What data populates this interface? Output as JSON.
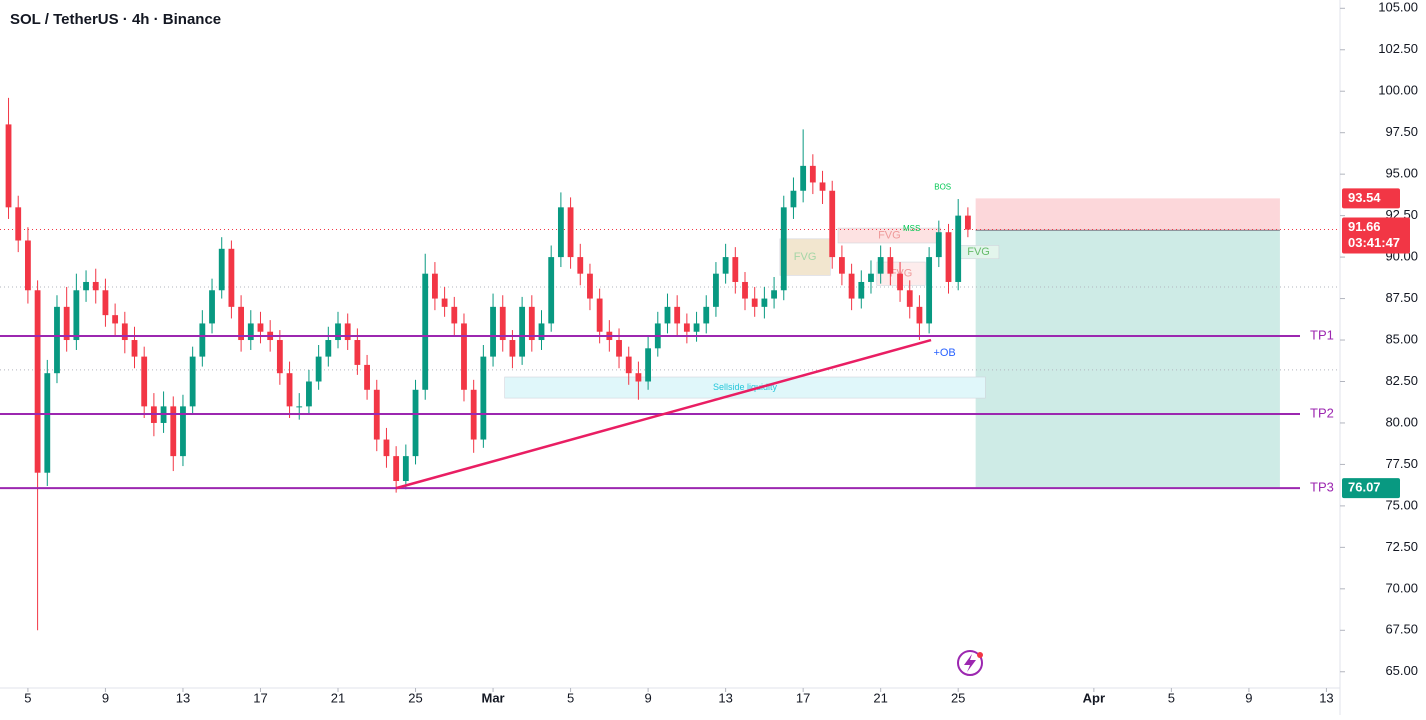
{
  "chart_data": {
    "type": "candlestick",
    "title": "SOL / TetherUS · 4h · Binance",
    "up_color": "#089981",
    "down_color": "#f23645",
    "x": [
      4,
      4.5,
      5,
      5.5,
      6,
      6.5,
      7,
      7.5,
      8,
      8.5,
      9,
      9.5,
      10,
      10.5,
      11,
      11.5,
      12,
      12.5,
      13,
      13.5,
      14,
      14.5,
      15,
      15.5,
      16,
      16.5,
      17,
      17.5,
      18,
      18.5,
      19,
      19.5,
      20,
      20.5,
      21,
      21.5,
      22,
      22.5,
      23,
      23.5,
      24,
      24.5,
      25,
      25.5,
      26,
      26.5,
      27,
      27.5,
      28,
      28.5,
      29,
      29.5,
      30,
      30.5,
      31,
      31.5,
      32,
      32.5,
      33,
      33.5,
      34,
      34.5,
      35,
      35.5,
      36,
      36.5,
      37,
      37.5,
      38,
      38.5,
      39,
      39.5,
      40,
      40.5,
      41,
      41.5,
      42,
      42.5,
      43,
      43.5,
      44,
      44.5,
      45,
      45.5,
      46,
      46.5,
      47,
      47.5,
      48,
      48.5,
      49,
      49.5,
      50,
      50.5,
      51,
      51.5,
      52,
      52.5,
      53,
      53.5
    ],
    "open": [
      98,
      93,
      91,
      88,
      77,
      83,
      87,
      85,
      88,
      88.5,
      88,
      86.5,
      86,
      85,
      84,
      81,
      80,
      81,
      78,
      81,
      84,
      86,
      88,
      90.5,
      87,
      85,
      86,
      85.5,
      85,
      83,
      81,
      81,
      82.5,
      84,
      85,
      86,
      85,
      83.5,
      82,
      79,
      78,
      76.5,
      78,
      82,
      89,
      87.5,
      87,
      86,
      82,
      79,
      84,
      87,
      85,
      84,
      87,
      85,
      86,
      90,
      93,
      90,
      89,
      87.5,
      85.5,
      85,
      84,
      83,
      82.5,
      84.5,
      86,
      87,
      86,
      85.5,
      86,
      87,
      89,
      90,
      88.5,
      87.5,
      87,
      87.5,
      88,
      93,
      94,
      95.5,
      94.5,
      94,
      90,
      89,
      87.5,
      88.5,
      89,
      90,
      89,
      88,
      87,
      86,
      90,
      91.5,
      88.5,
      92.5
    ],
    "high": [
      99.6,
      93.7,
      91.8,
      88.6,
      83.8,
      87.7,
      88.2,
      89,
      89.2,
      89.3,
      88.7,
      87.2,
      86.7,
      85.8,
      84.6,
      81.8,
      81.9,
      81.6,
      81.7,
      84.6,
      86.8,
      88.7,
      91.2,
      91,
      87.7,
      86.8,
      86.7,
      86.2,
      85.6,
      83.7,
      81.8,
      83.2,
      84.7,
      85.8,
      86.7,
      86.6,
      85.7,
      84.1,
      82.6,
      79.7,
      78.6,
      78.7,
      82.6,
      90.2,
      89.7,
      88.2,
      87.6,
      86.6,
      82.6,
      84.7,
      87.8,
      87.7,
      85.6,
      87.6,
      87.7,
      86.8,
      90.7,
      93.9,
      93.6,
      90.8,
      89.6,
      88.1,
      86.2,
      85.7,
      84.6,
      83.7,
      85.2,
      86.7,
      87.8,
      87.7,
      86.6,
      86.7,
      87.7,
      89.7,
      90.8,
      90.6,
      89.1,
      88.2,
      88.2,
      88.8,
      93.7,
      94.8,
      97.7,
      96.2,
      95.2,
      94.6,
      90.7,
      89.6,
      89.2,
      89.8,
      90.7,
      90.6,
      89.7,
      88.6,
      87.7,
      90.6,
      92.2,
      92,
      93.5,
      93
    ],
    "low": [
      92.3,
      90.3,
      87.2,
      67.5,
      76.2,
      82.4,
      84.3,
      84.4,
      87.3,
      87.2,
      85.8,
      85.3,
      84.2,
      83.3,
      80.3,
      79.2,
      79.4,
      77.1,
      77.4,
      80.5,
      83.4,
      85.4,
      87.5,
      86.3,
      84.3,
      84.4,
      84.8,
      84.3,
      82.3,
      80.3,
      80.2,
      80.5,
      82,
      83.4,
      84.5,
      84.4,
      82.9,
      81.4,
      78.3,
      77.3,
      75.8,
      76,
      77.5,
      81.4,
      86.8,
      86.4,
      85.3,
      81.3,
      78.2,
      78.5,
      83.4,
      84.3,
      83.3,
      83.5,
      84.3,
      84.4,
      85.5,
      89.4,
      89.3,
      88.3,
      86.8,
      84.8,
      84.3,
      83.3,
      82.3,
      81.4,
      82,
      84,
      85.4,
      85.3,
      84.8,
      84.9,
      85.4,
      86.4,
      88.4,
      87.8,
      86.8,
      86.4,
      86.3,
      86.9,
      87.4,
      92.3,
      93.3,
      93.8,
      93.2,
      89.3,
      88.3,
      86.8,
      86.9,
      87.8,
      88.4,
      88.3,
      87.3,
      86.3,
      85,
      85.4,
      89.4,
      87.8,
      88,
      91.2
    ],
    "close": [
      93,
      91,
      88,
      77,
      83,
      87,
      85,
      88,
      88.5,
      88,
      86.5,
      86,
      85,
      84,
      81,
      80,
      81,
      78,
      81,
      84,
      86,
      88,
      90.5,
      87,
      85,
      86,
      85.5,
      85,
      83,
      81,
      81,
      82.5,
      84,
      85,
      86,
      85,
      83.5,
      82,
      79,
      78,
      76.5,
      78,
      82,
      89,
      87.5,
      87,
      86,
      82,
      79,
      84,
      87,
      85,
      84,
      87,
      85,
      86,
      90,
      93,
      90,
      89,
      87.5,
      85.5,
      85,
      84,
      83,
      82.5,
      84.5,
      86,
      87,
      86,
      85.5,
      86,
      87,
      89,
      90,
      88.5,
      87.5,
      87,
      87.5,
      88,
      93,
      94,
      95.5,
      94.5,
      94,
      90,
      89,
      87.5,
      88.5,
      89,
      90,
      89,
      88,
      87,
      86,
      90,
      91.5,
      88.5,
      92.5,
      91.66
    ],
    "xlim": [
      3.56,
      72.7
    ],
    "ylim": [
      63.9,
      105.5
    ],
    "xticks": [
      {
        "value": 5,
        "label": "5"
      },
      {
        "value": 9,
        "label": "9"
      },
      {
        "value": 13,
        "label": "13"
      },
      {
        "value": 17,
        "label": "17"
      },
      {
        "value": 21,
        "label": "21"
      },
      {
        "value": 25,
        "label": "25"
      },
      {
        "value": 29,
        "label": "Mar"
      },
      {
        "value": 33,
        "label": "5"
      },
      {
        "value": 37,
        "label": "9"
      },
      {
        "value": 41,
        "label": "13"
      },
      {
        "value": 45,
        "label": "17"
      },
      {
        "value": 49,
        "label": "21"
      },
      {
        "value": 53,
        "label": "25"
      },
      {
        "value": 60,
        "label": "Apr"
      },
      {
        "value": 64,
        "label": "5"
      },
      {
        "value": 68,
        "label": "9"
      },
      {
        "value": 72,
        "label": "13"
      }
    ],
    "yticks": [
      {
        "value": 65,
        "label": "65.00"
      },
      {
        "value": 67.5,
        "label": "67.50"
      },
      {
        "value": 70,
        "label": "70.00"
      },
      {
        "value": 72.5,
        "label": "72.50"
      },
      {
        "value": 75,
        "label": "75.00"
      },
      {
        "value": 77.5,
        "label": "77.50"
      },
      {
        "value": 80,
        "label": "80.00"
      },
      {
        "value": 82.5,
        "label": "82.50"
      },
      {
        "value": 85,
        "label": "85.00"
      },
      {
        "value": 87.5,
        "label": "87.50"
      },
      {
        "value": 90,
        "label": "90.00"
      },
      {
        "value": 92.5,
        "label": "92.50"
      },
      {
        "value": 95,
        "label": "95.00"
      },
      {
        "value": 97.5,
        "label": "97.50"
      },
      {
        "value": 100,
        "label": "100.00"
      },
      {
        "value": 102.5,
        "label": "102.50"
      },
      {
        "value": 105,
        "label": "105.00"
      }
    ],
    "countdown": "03:41:47",
    "levels": [
      {
        "name": "TP1",
        "value": 85.24,
        "color": "#9c27b0"
      },
      {
        "name": "TP2",
        "value": 80.54,
        "color": "#9c27b0"
      },
      {
        "name": "TP3",
        "value": 76.07,
        "color": "#9c27b0"
      }
    ],
    "dotted_levels": [
      {
        "value": 91.66,
        "color": "#f23645"
      },
      {
        "value": 88.2,
        "color": "#b2b5be"
      },
      {
        "value": 83.2,
        "color": "#b2b5be"
      }
    ],
    "trendline": {
      "x": [
        24,
        51.6
      ],
      "y": [
        76.07,
        85.0
      ],
      "color": "#e91e63"
    },
    "position": {
      "x": [
        53.9,
        69.6
      ],
      "entry": 91.62,
      "stop": 93.54,
      "target": 76.07
    },
    "zones": [
      {
        "label": "FVG",
        "x": [
          43.8,
          46.4
        ],
        "y": [
          88.9,
          91.1
        ],
        "color": "#f2e6cf",
        "text_color": "#a5d6a7"
      },
      {
        "label": "FVG",
        "x": [
          46.8,
          52.1
        ],
        "y": [
          90.85,
          91.75
        ],
        "color": "#fde2e2",
        "text_color": "#ef9a9a"
      },
      {
        "label": "FVG",
        "x": [
          48.8,
          51.3
        ],
        "y": [
          88.3,
          89.7
        ],
        "color": "#fdecec",
        "text_color": "#ef9a9a"
      },
      {
        "label": "FVG",
        "x": [
          53.0,
          55.1
        ],
        "y": [
          89.9,
          90.7
        ],
        "color": "#e3f5ec",
        "text_color": "#66bb6a"
      },
      {
        "label": "Sellside liquidity",
        "x": [
          29.6,
          54.4
        ],
        "y": [
          81.5,
          82.77
        ],
        "color": "#e0f7fa",
        "text_color": "#26c6da"
      }
    ],
    "markers": [
      {
        "label": "BOS",
        "x": 52.2,
        "y": 94.2,
        "color": "#00c853"
      },
      {
        "label": "MSS",
        "x": 50.6,
        "y": 91.7,
        "color": "#00c853"
      },
      {
        "label": "+OB",
        "x": 52.3,
        "y": 84.2,
        "color": "#2962ff"
      }
    ]
  }
}
